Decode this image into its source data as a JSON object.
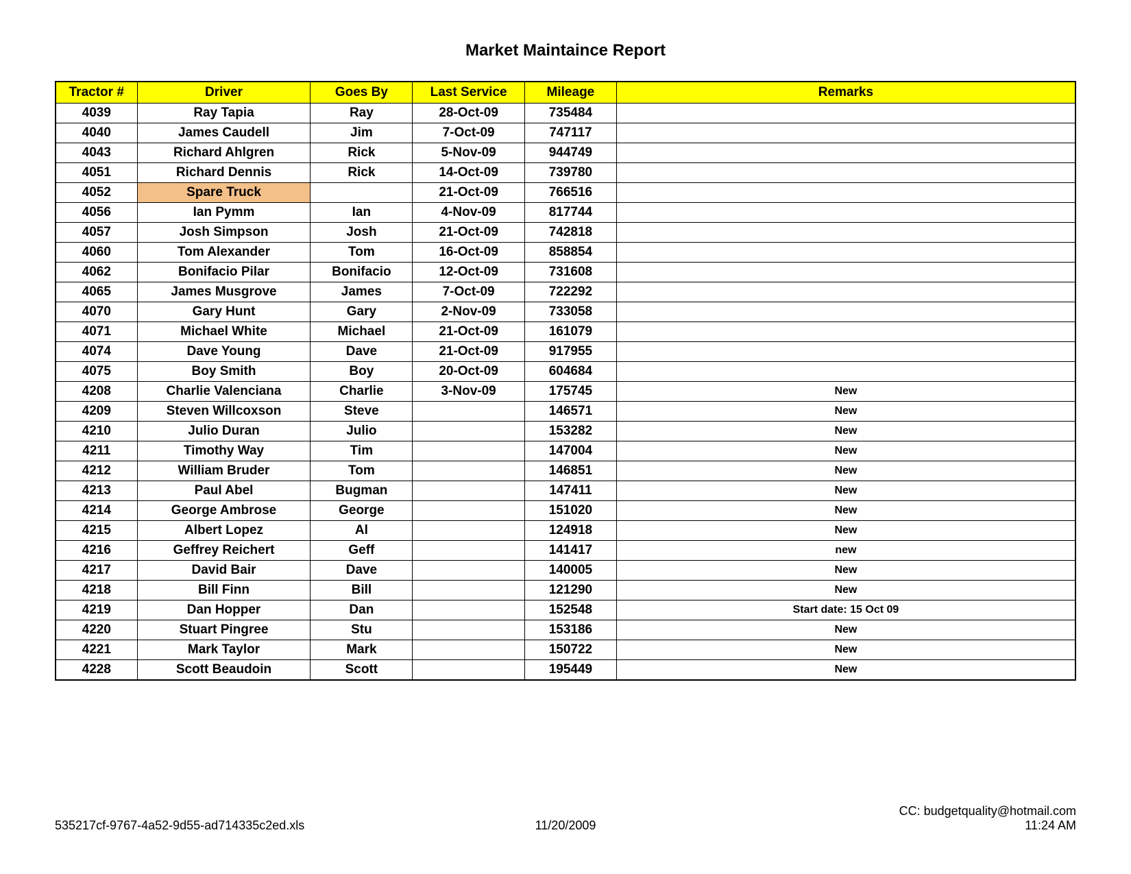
{
  "title": "Market Maintaince Report",
  "table": {
    "columns": [
      "Tractor #",
      "Driver",
      "Goes By",
      "Last Service",
      "Mileage",
      "Remarks"
    ],
    "rows": [
      {
        "tractor": "4039",
        "driver": "Ray Tapia",
        "goesby": "Ray",
        "lastservice": "28-Oct-09",
        "mileage": "735484",
        "remarks": "",
        "highlight": false
      },
      {
        "tractor": "4040",
        "driver": "James Caudell",
        "goesby": "Jim",
        "lastservice": "7-Oct-09",
        "mileage": "747117",
        "remarks": "",
        "highlight": false
      },
      {
        "tractor": "4043",
        "driver": "Richard Ahlgren",
        "goesby": "Rick",
        "lastservice": "5-Nov-09",
        "mileage": "944749",
        "remarks": "",
        "highlight": false
      },
      {
        "tractor": "4051",
        "driver": "Richard Dennis",
        "goesby": "Rick",
        "lastservice": "14-Oct-09",
        "mileage": "739780",
        "remarks": "",
        "highlight": false
      },
      {
        "tractor": "4052",
        "driver": "Spare Truck",
        "goesby": "",
        "lastservice": "21-Oct-09",
        "mileage": "766516",
        "remarks": "",
        "highlight": true
      },
      {
        "tractor": "4056",
        "driver": "Ian Pymm",
        "goesby": "Ian",
        "lastservice": "4-Nov-09",
        "mileage": "817744",
        "remarks": "",
        "highlight": false
      },
      {
        "tractor": "4057",
        "driver": "Josh Simpson",
        "goesby": "Josh",
        "lastservice": "21-Oct-09",
        "mileage": "742818",
        "remarks": "",
        "highlight": false
      },
      {
        "tractor": "4060",
        "driver": "Tom Alexander",
        "goesby": "Tom",
        "lastservice": "16-Oct-09",
        "mileage": "858854",
        "remarks": "",
        "highlight": false
      },
      {
        "tractor": "4062",
        "driver": "Bonifacio Pilar",
        "goesby": "Bonifacio",
        "lastservice": "12-Oct-09",
        "mileage": "731608",
        "remarks": "",
        "highlight": false
      },
      {
        "tractor": "4065",
        "driver": "James Musgrove",
        "goesby": "James",
        "lastservice": "7-Oct-09",
        "mileage": "722292",
        "remarks": "",
        "highlight": false
      },
      {
        "tractor": "4070",
        "driver": "Gary Hunt",
        "goesby": "Gary",
        "lastservice": "2-Nov-09",
        "mileage": "733058",
        "remarks": "",
        "highlight": false
      },
      {
        "tractor": "4071",
        "driver": "Michael White",
        "goesby": "Michael",
        "lastservice": "21-Oct-09",
        "mileage": "161079",
        "remarks": "",
        "highlight": false
      },
      {
        "tractor": "4074",
        "driver": "Dave Young",
        "goesby": "Dave",
        "lastservice": "21-Oct-09",
        "mileage": "917955",
        "remarks": "",
        "highlight": false
      },
      {
        "tractor": "4075",
        "driver": "Boy Smith",
        "goesby": "Boy",
        "lastservice": "20-Oct-09",
        "mileage": "604684",
        "remarks": "",
        "highlight": false
      },
      {
        "tractor": "4208",
        "driver": "Charlie Valenciana",
        "goesby": "Charlie",
        "lastservice": "3-Nov-09",
        "mileage": "175745",
        "remarks": "New",
        "highlight": false
      },
      {
        "tractor": "4209",
        "driver": "Steven Willcoxson",
        "goesby": "Steve",
        "lastservice": "",
        "mileage": "146571",
        "remarks": "New",
        "highlight": false
      },
      {
        "tractor": "4210",
        "driver": "Julio Duran",
        "goesby": "Julio",
        "lastservice": "",
        "mileage": "153282",
        "remarks": "New",
        "highlight": false
      },
      {
        "tractor": "4211",
        "driver": "Timothy Way",
        "goesby": "Tim",
        "lastservice": "",
        "mileage": "147004",
        "remarks": "New",
        "highlight": false
      },
      {
        "tractor": "4212",
        "driver": "William Bruder",
        "goesby": "Tom",
        "lastservice": "",
        "mileage": "146851",
        "remarks": "New",
        "highlight": false
      },
      {
        "tractor": "4213",
        "driver": "Paul Abel",
        "goesby": "Bugman",
        "lastservice": "",
        "mileage": "147411",
        "remarks": "New",
        "highlight": false
      },
      {
        "tractor": "4214",
        "driver": "George Ambrose",
        "goesby": "George",
        "lastservice": "",
        "mileage": "151020",
        "remarks": "New",
        "highlight": false
      },
      {
        "tractor": "4215",
        "driver": "Albert Lopez",
        "goesby": "Al",
        "lastservice": "",
        "mileage": "124918",
        "remarks": "New",
        "highlight": false
      },
      {
        "tractor": "4216",
        "driver": "Geffrey Reichert",
        "goesby": "Geff",
        "lastservice": "",
        "mileage": "141417",
        "remarks": "new",
        "highlight": false
      },
      {
        "tractor": "4217",
        "driver": "David Bair",
        "goesby": "Dave",
        "lastservice": "",
        "mileage": "140005",
        "remarks": "New",
        "highlight": false
      },
      {
        "tractor": "4218",
        "driver": "Bill Finn",
        "goesby": "Bill",
        "lastservice": "",
        "mileage": "121290",
        "remarks": "New",
        "highlight": false
      },
      {
        "tractor": "4219",
        "driver": "Dan Hopper",
        "goesby": "Dan",
        "lastservice": "",
        "mileage": "152548",
        "remarks": "Start date: 15 Oct 09",
        "highlight": false
      },
      {
        "tractor": "4220",
        "driver": "Stuart Pingree",
        "goesby": "Stu",
        "lastservice": "",
        "mileage": "153186",
        "remarks": "New",
        "highlight": false
      },
      {
        "tractor": "4221",
        "driver": "Mark Taylor",
        "goesby": "Mark",
        "lastservice": "",
        "mileage": "150722",
        "remarks": "New",
        "highlight": false
      },
      {
        "tractor": "4228",
        "driver": "Scott Beaudoin",
        "goesby": "Scott",
        "lastservice": "",
        "mileage": "195449",
        "remarks": "New",
        "highlight": false
      }
    ]
  },
  "footer": {
    "filename": "535217cf-9767-4a52-9d55-ad714335c2ed.xls",
    "date": "11/20/2009",
    "cc": "CC: budgetquality@hotmail.com",
    "time": "11:24 AM"
  },
  "colors": {
    "header_bg": "#ffff00",
    "spare_bg": "#f4c089",
    "border": "#000000",
    "text": "#000000"
  }
}
